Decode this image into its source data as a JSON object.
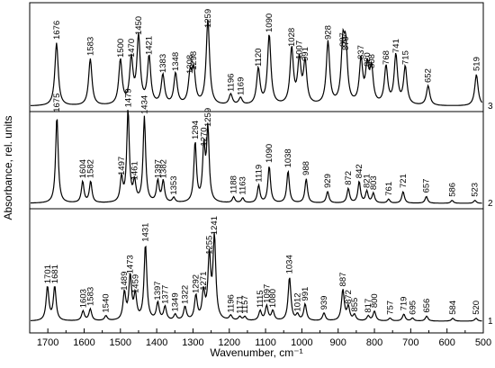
{
  "chart_data": {
    "type": "line",
    "title": "",
    "xlabel": "Wavenumber, cm⁻¹",
    "ylabel": "Absorbance, rel. units",
    "xlim": [
      1750,
      500
    ],
    "x_reversed": true,
    "x_ticks": [
      1700,
      1600,
      1500,
      1400,
      1300,
      1200,
      1100,
      1000,
      900,
      800,
      700,
      600,
      500
    ],
    "y_ticks_shown": false,
    "grid": false,
    "legend": "none",
    "line_color": "#000000",
    "series": [
      {
        "name": "3",
        "peaks": [
          {
            "x": 1676,
            "label": "1676",
            "h": 0.7
          },
          {
            "x": 1583,
            "label": "1583",
            "h": 0.52
          },
          {
            "x": 1500,
            "label": "1500",
            "h": 0.5
          },
          {
            "x": 1470,
            "label": "1470",
            "h": 0.5
          },
          {
            "x": 1450,
            "label": "1450",
            "h": 0.75
          },
          {
            "x": 1421,
            "label": "1421",
            "h": 0.53
          },
          {
            "x": 1383,
            "label": "1383",
            "h": 0.33
          },
          {
            "x": 1348,
            "label": "1348",
            "h": 0.35
          },
          {
            "x": 1308,
            "label": "1308",
            "h": 0.32
          },
          {
            "x": 1298,
            "label": "1298",
            "h": 0.36
          },
          {
            "x": 1259,
            "label": "1259",
            "h": 0.95
          },
          {
            "x": 1196,
            "label": "1196",
            "h": 0.12
          },
          {
            "x": 1169,
            "label": "1169",
            "h": 0.08
          },
          {
            "x": 1120,
            "label": "1120",
            "h": 0.4
          },
          {
            "x": 1090,
            "label": "1090",
            "h": 0.78
          },
          {
            "x": 1028,
            "label": "1028",
            "h": 0.62
          },
          {
            "x": 1007,
            "label": "1007",
            "h": 0.48
          },
          {
            "x": 991,
            "label": "991",
            "h": 0.46
          },
          {
            "x": 928,
            "label": "928",
            "h": 0.7
          },
          {
            "x": 887,
            "label": "887",
            "h": 0.62
          },
          {
            "x": 879,
            "label": "879",
            "h": 0.58
          },
          {
            "x": 837,
            "label": "837",
            "h": 0.48
          },
          {
            "x": 820,
            "label": "820",
            "h": 0.4
          },
          {
            "x": 808,
            "label": "808",
            "h": 0.38
          },
          {
            "x": 768,
            "label": "768",
            "h": 0.42
          },
          {
            "x": 741,
            "label": "741",
            "h": 0.55
          },
          {
            "x": 715,
            "label": "715",
            "h": 0.42
          },
          {
            "x": 652,
            "label": "652",
            "h": 0.22
          },
          {
            "x": 519,
            "label": "519",
            "h": 0.35
          }
        ]
      },
      {
        "name": "2",
        "peaks": [
          {
            "x": 1675,
            "label": "1675",
            "h": 0.9
          },
          {
            "x": 1604,
            "label": "1604",
            "h": 0.22
          },
          {
            "x": 1582,
            "label": "1582",
            "h": 0.22
          },
          {
            "x": 1497,
            "label": "1497",
            "h": 0.25
          },
          {
            "x": 1479,
            "label": "1479",
            "h": 0.95
          },
          {
            "x": 1461,
            "label": "1461",
            "h": 0.2
          },
          {
            "x": 1434,
            "label": "1434",
            "h": 0.88
          },
          {
            "x": 1397,
            "label": "1397",
            "h": 0.22
          },
          {
            "x": 1382,
            "label": "1382",
            "h": 0.22
          },
          {
            "x": 1353,
            "label": "1353",
            "h": 0.05
          },
          {
            "x": 1294,
            "label": "1294",
            "h": 0.62
          },
          {
            "x": 1270,
            "label": "1270",
            "h": 0.55
          },
          {
            "x": 1259,
            "label": "1259",
            "h": 0.75
          },
          {
            "x": 1188,
            "label": "1188",
            "h": 0.06
          },
          {
            "x": 1163,
            "label": "1163",
            "h": 0.05
          },
          {
            "x": 1119,
            "label": "1119",
            "h": 0.18
          },
          {
            "x": 1090,
            "label": "1090",
            "h": 0.38
          },
          {
            "x": 1038,
            "label": "1038",
            "h": 0.33
          },
          {
            "x": 988,
            "label": "988",
            "h": 0.25
          },
          {
            "x": 929,
            "label": "929",
            "h": 0.12
          },
          {
            "x": 872,
            "label": "872",
            "h": 0.15
          },
          {
            "x": 842,
            "label": "842",
            "h": 0.22
          },
          {
            "x": 821,
            "label": "821",
            "h": 0.12
          },
          {
            "x": 803,
            "label": "803",
            "h": 0.1
          },
          {
            "x": 761,
            "label": "761",
            "h": 0.04
          },
          {
            "x": 721,
            "label": "721",
            "h": 0.12
          },
          {
            "x": 657,
            "label": "657",
            "h": 0.07
          },
          {
            "x": 586,
            "label": "586",
            "h": 0.03
          },
          {
            "x": 523,
            "label": "523",
            "h": 0.03
          }
        ]
      },
      {
        "name": "1",
        "peaks": [
          {
            "x": 1701,
            "label": "1701",
            "h": 0.35
          },
          {
            "x": 1681,
            "label": "1681",
            "h": 0.35
          },
          {
            "x": 1603,
            "label": "1603",
            "h": 0.1
          },
          {
            "x": 1583,
            "label": "1583",
            "h": 0.12
          },
          {
            "x": 1540,
            "label": "1540",
            "h": 0.05
          },
          {
            "x": 1489,
            "label": "1489",
            "h": 0.28
          },
          {
            "x": 1473,
            "label": "1473",
            "h": 0.45
          },
          {
            "x": 1459,
            "label": "1459",
            "h": 0.25
          },
          {
            "x": 1431,
            "label": "1431",
            "h": 0.78
          },
          {
            "x": 1397,
            "label": "1397",
            "h": 0.18
          },
          {
            "x": 1377,
            "label": "1377",
            "h": 0.14
          },
          {
            "x": 1349,
            "label": "1349",
            "h": 0.06
          },
          {
            "x": 1322,
            "label": "1322",
            "h": 0.14
          },
          {
            "x": 1292,
            "label": "1292",
            "h": 0.25
          },
          {
            "x": 1271,
            "label": "1271",
            "h": 0.28
          },
          {
            "x": 1255,
            "label": "1255",
            "h": 0.65
          },
          {
            "x": 1241,
            "label": "1241",
            "h": 0.85
          },
          {
            "x": 1196,
            "label": "1196",
            "h": 0.05
          },
          {
            "x": 1171,
            "label": "1171",
            "h": 0.04
          },
          {
            "x": 1157,
            "label": "1157",
            "h": 0.04
          },
          {
            "x": 1115,
            "label": "1115",
            "h": 0.1
          },
          {
            "x": 1097,
            "label": "1097",
            "h": 0.15
          },
          {
            "x": 1080,
            "label": "1080",
            "h": 0.1
          },
          {
            "x": 1034,
            "label": "1034",
            "h": 0.45
          },
          {
            "x": 1012,
            "label": "1012",
            "h": 0.06
          },
          {
            "x": 991,
            "label": "991",
            "h": 0.17
          },
          {
            "x": 939,
            "label": "939",
            "h": 0.08
          },
          {
            "x": 887,
            "label": "887",
            "h": 0.32
          },
          {
            "x": 872,
            "label": "872",
            "h": 0.14
          },
          {
            "x": 855,
            "label": "855",
            "h": 0.06
          },
          {
            "x": 817,
            "label": "817",
            "h": 0.05
          },
          {
            "x": 800,
            "label": "800",
            "h": 0.1
          },
          {
            "x": 757,
            "label": "757",
            "h": 0.03
          },
          {
            "x": 719,
            "label": "719",
            "h": 0.07
          },
          {
            "x": 695,
            "label": "695",
            "h": 0.03
          },
          {
            "x": 656,
            "label": "656",
            "h": 0.05
          },
          {
            "x": 584,
            "label": "584",
            "h": 0.03
          },
          {
            "x": 520,
            "label": "520",
            "h": 0.03
          }
        ]
      }
    ]
  }
}
